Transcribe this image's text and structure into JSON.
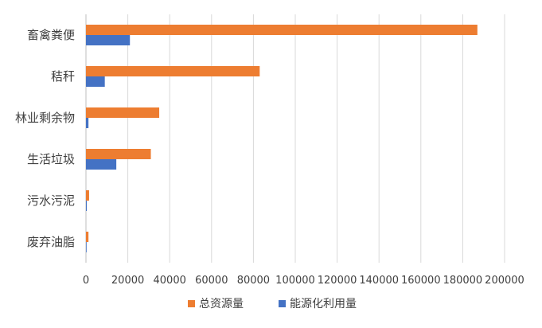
{
  "chart_data": {
    "type": "bar",
    "orientation": "horizontal",
    "title": "",
    "xlabel": "",
    "ylabel": "",
    "categories": [
      "畜禽粪便",
      "秸秆",
      "林业剩余物",
      "生活垃圾",
      "污水污泥",
      "废弃油脂"
    ],
    "series": [
      {
        "name": "总资源量",
        "color": "#ed7d31",
        "values": [
          187000,
          83000,
          35000,
          31000,
          1500,
          1200
        ]
      },
      {
        "name": "能源化利用量",
        "color": "#4472c4",
        "values": [
          21000,
          9000,
          1200,
          14500,
          400,
          300
        ]
      }
    ],
    "xlim": [
      0,
      200000
    ],
    "xticks": [
      "0",
      "20000",
      "40000",
      "60000",
      "80000",
      "100000",
      "120000",
      "140000",
      "160000",
      "180000",
      "200000"
    ],
    "grid": true,
    "legend_position": "bottom"
  }
}
